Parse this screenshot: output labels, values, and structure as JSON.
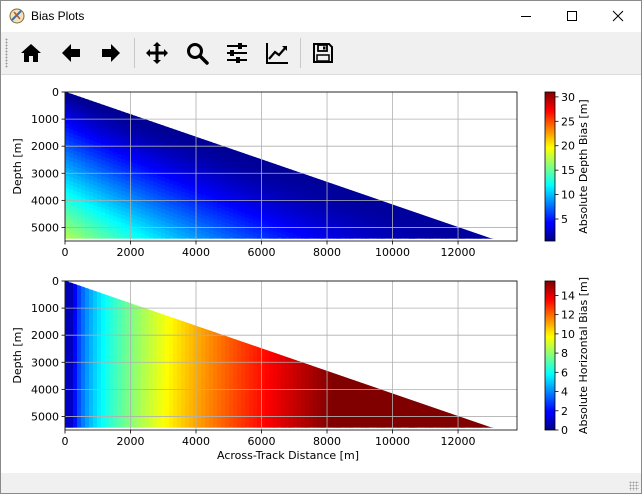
{
  "window": {
    "title": "Bias Plots"
  },
  "toolbar": {
    "buttons": [
      {
        "name": "home-button",
        "icon": "home-icon"
      },
      {
        "name": "back-button",
        "icon": "arrow-left-icon"
      },
      {
        "name": "forward-button",
        "icon": "arrow-right-icon"
      },
      {
        "name": "pan-button",
        "icon": "move-icon"
      },
      {
        "name": "zoom-button",
        "icon": "magnifier-icon"
      },
      {
        "name": "configure-subplots-button",
        "icon": "sliders-icon"
      },
      {
        "name": "edit-axis-button",
        "icon": "line-chart-icon"
      },
      {
        "name": "save-button",
        "icon": "floppy-icon"
      }
    ]
  },
  "chart_data": [
    {
      "type": "heatmap",
      "colormap": "jet",
      "x": [
        0,
        2000,
        4000,
        6000,
        8000,
        10000,
        12000
      ],
      "xlim": [
        0,
        13800
      ],
      "ylim": [
        5500,
        0
      ],
      "yticks": [
        0,
        1000,
        2000,
        3000,
        4000,
        5000
      ],
      "ylabel": "Depth [m]",
      "xlabel": "",
      "colorbar_label": "Absolute Depth Bias [m]",
      "colorbar_range": [
        0.5,
        31
      ],
      "colorbar_ticks": [
        5,
        10,
        15,
        20,
        25,
        30
      ],
      "grid": true,
      "data_extent": {
        "max_across_track": 13000,
        "max_depth": 5400
      }
    },
    {
      "type": "heatmap",
      "colormap": "jet",
      "x": [
        0,
        2000,
        4000,
        6000,
        8000,
        10000,
        12000
      ],
      "xlim": [
        0,
        13800
      ],
      "ylim": [
        5500,
        0
      ],
      "yticks": [
        0,
        1000,
        2000,
        3000,
        4000,
        5000
      ],
      "ylabel": "Depth [m]",
      "xlabel": "Across-Track Distance [m]",
      "colorbar_label": "Absolute Horizontal Bias [m]",
      "colorbar_range": [
        0,
        15.5
      ],
      "colorbar_ticks": [
        0,
        2,
        4,
        6,
        8,
        10,
        12,
        14
      ],
      "grid": true,
      "data_extent": {
        "max_across_track": 13000,
        "max_depth": 5400
      }
    }
  ]
}
